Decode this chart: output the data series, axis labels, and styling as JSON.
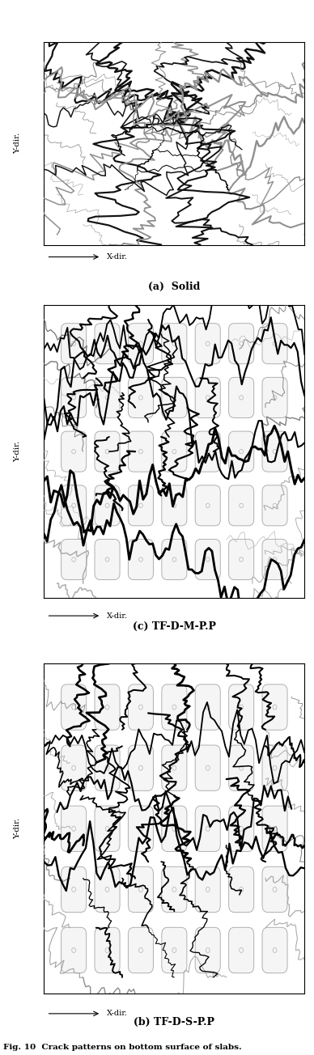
{
  "fig_width": 3.88,
  "fig_height": 13.04,
  "bg_color": "#ffffff",
  "caption_a": "(a)  Solid",
  "caption_b": "(b) TF-D-S-P.P",
  "caption_c": "(c) TF-D-M-P.P",
  "fig_caption": "Fig. 10  Crack patterns on bottom surface of slabs.",
  "ylabel": "Y-dir.",
  "xlabel": "X-dir.",
  "hole_rows": 5,
  "hole_cols": 7
}
